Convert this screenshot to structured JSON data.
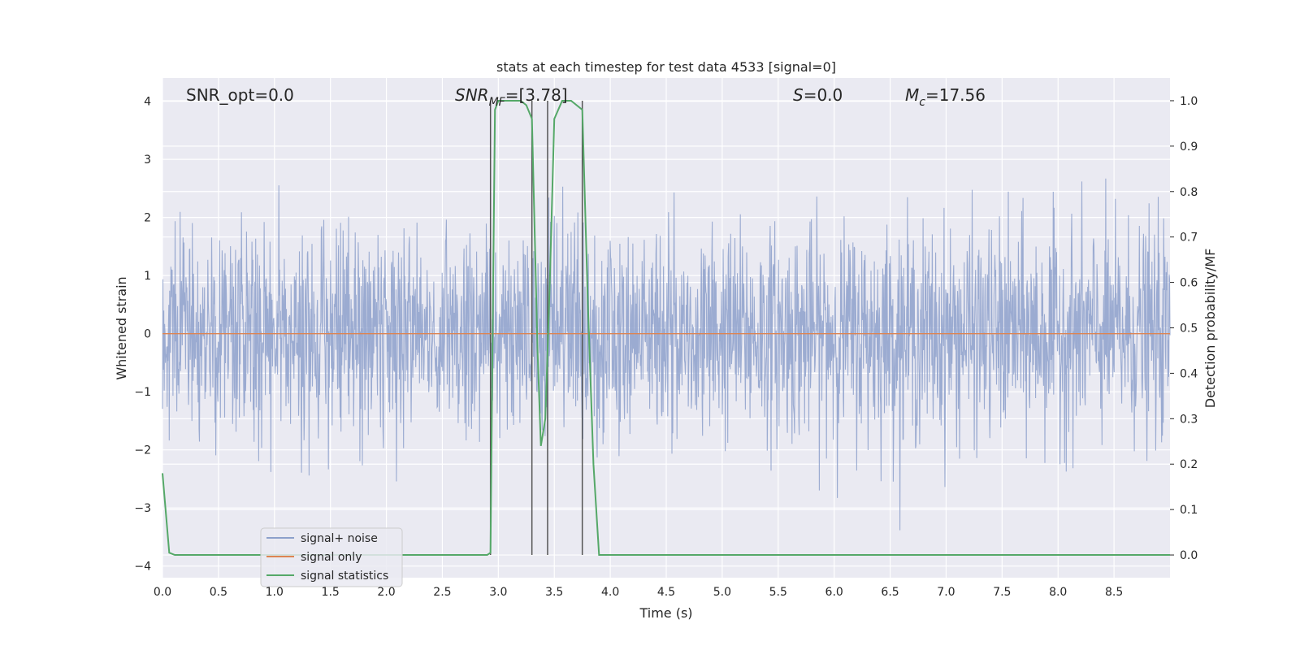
{
  "chart_data": {
    "type": "line",
    "title": "stats at each timestep for test data 4533 [signal=0]",
    "xlabel": "Time (s)",
    "ylabel": "Whitened strain",
    "y2label": "Detection probability/MF",
    "xlim": [
      0,
      9.0
    ],
    "ylim": [
      -4.2,
      4.4
    ],
    "y2lim": [
      -0.05,
      1.05
    ],
    "xticks": [
      "0.0",
      "0.5",
      "1.0",
      "1.5",
      "2.0",
      "2.5",
      "3.0",
      "3.5",
      "4.0",
      "4.5",
      "5.0",
      "5.5",
      "6.0",
      "6.5",
      "7.0",
      "7.5",
      "8.0",
      "8.5"
    ],
    "yticks": [
      "4",
      "3",
      "2",
      "1",
      "0",
      "−1",
      "−2",
      "−3",
      "−4"
    ],
    "y2ticks": [
      "1.0",
      "0.9",
      "0.8",
      "0.7",
      "0.6",
      "0.5",
      "0.4",
      "0.3",
      "0.2",
      "0.1",
      "0.0"
    ],
    "grid": true,
    "legend_position": "lower-left",
    "annotations": {
      "snr_opt": "SNR_opt=0.0",
      "snr_mf_main": "SNR",
      "snr_mf_sub": "MF",
      "snr_mf_value": "=[3.78]",
      "s_main": "S",
      "s_value": "=0.0",
      "mc_main": "M",
      "mc_sub": "c",
      "mc_value": "=17.56"
    },
    "series": [
      {
        "name": "signal+ noise",
        "color": "#8da0cb",
        "description_values": "dense whitened noise, roughly within ±2.5 with spikes to ±4",
        "envelope_typical": [
          -2.0,
          2.0
        ]
      },
      {
        "name": "signal only",
        "color": "#dd8452",
        "values_constant": 0.0
      },
      {
        "name": "signal statistics",
        "color": "#55a868",
        "axis": "right",
        "x": [
          0.0,
          0.06,
          0.11,
          0.2,
          2.9,
          2.93,
          2.95,
          2.97,
          3.0,
          3.1,
          3.2,
          3.25,
          3.3,
          3.35,
          3.38,
          3.42,
          3.46,
          3.5,
          3.57,
          3.65,
          3.75,
          3.8,
          3.85,
          3.9,
          3.93,
          4.0,
          9.0
        ],
        "values": [
          0.18,
          0.005,
          0.0,
          0.0,
          0.0,
          0.005,
          0.5,
          0.98,
          1.0,
          1.0,
          1.0,
          0.99,
          0.96,
          0.45,
          0.24,
          0.3,
          0.6,
          0.96,
          1.0,
          1.0,
          0.98,
          0.55,
          0.2,
          0.0,
          0.0,
          0.0,
          0.0
        ]
      }
    ],
    "vlines_x": [
      2.93,
      3.3,
      3.44,
      3.75
    ]
  }
}
